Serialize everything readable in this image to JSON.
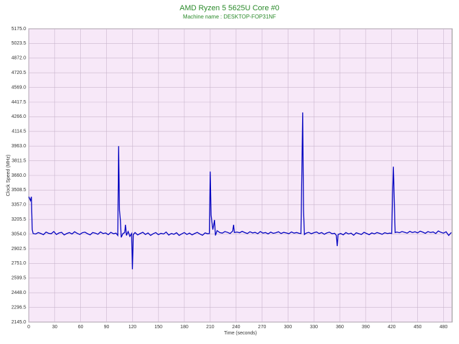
{
  "chart_data": {
    "type": "line",
    "title": "AMD Ryzen 5 5625U Core #0",
    "subtitle": "Machine name : DESKTOP-FOP31NF",
    "x_label": "Time (seconds)",
    "y_label": "Clock Speed (MHz)",
    "color": "#0000c0",
    "grid": true,
    "xlim": [
      0,
      490
    ],
    "xticks": [
      0,
      30,
      60,
      90,
      120,
      150,
      180,
      210,
      240,
      270,
      300,
      330,
      360,
      390,
      420,
      450,
      480
    ],
    "ylim": [
      2145,
      5175
    ],
    "yticks": [
      {
        "value": 2145,
        "label": "2145.0"
      },
      {
        "value": 2296.5,
        "label": "2296.5"
      },
      {
        "value": 2448,
        "label": "2448.0"
      },
      {
        "value": 2599.5,
        "label": "2599.5"
      },
      {
        "value": 2751,
        "label": "2751.0"
      },
      {
        "value": 2902.5,
        "label": "2902.5"
      },
      {
        "value": 3054,
        "label": "3054.0"
      },
      {
        "value": 3205.5,
        "label": "3205.5"
      },
      {
        "value": 3357,
        "label": "3357.0"
      },
      {
        "value": 3508.5,
        "label": "3508.5"
      },
      {
        "value": 3660,
        "label": "3660.0"
      },
      {
        "value": 3811.5,
        "label": "3811.5"
      },
      {
        "value": 3963,
        "label": "3963.0"
      },
      {
        "value": 4114.5,
        "label": "4114.5"
      },
      {
        "value": 4266,
        "label": "4266.0"
      },
      {
        "value": 4417.5,
        "label": "4417.5"
      },
      {
        "value": 4569,
        "label": "4569.0"
      },
      {
        "value": 4720.5,
        "label": "4720.5"
      },
      {
        "value": 4872,
        "label": "4872.0"
      },
      {
        "value": 5023.5,
        "label": "5023.5"
      },
      {
        "value": 5175,
        "label": "5175.0"
      }
    ],
    "x": [
      0,
      1,
      2,
      3,
      4,
      5,
      8,
      11,
      14,
      17,
      20,
      23,
      26,
      29,
      32,
      35,
      38,
      41,
      44,
      47,
      50,
      53,
      56,
      59,
      62,
      65,
      68,
      71,
      74,
      77,
      80,
      83,
      86,
      89,
      92,
      95,
      98,
      101,
      103,
      104,
      105,
      106,
      107,
      109,
      111,
      112,
      113,
      115,
      117,
      119,
      120,
      121,
      123,
      126,
      129,
      132,
      135,
      138,
      141,
      144,
      147,
      150,
      153,
      156,
      159,
      162,
      165,
      168,
      171,
      174,
      177,
      180,
      183,
      186,
      189,
      192,
      195,
      198,
      201,
      204,
      207,
      209,
      210,
      211,
      213,
      215,
      216,
      218,
      221,
      224,
      227,
      230,
      233,
      236,
      237,
      238,
      241,
      244,
      247,
      250,
      253,
      256,
      259,
      262,
      265,
      268,
      271,
      274,
      277,
      280,
      283,
      286,
      289,
      292,
      295,
      298,
      301,
      304,
      307,
      310,
      313,
      315,
      316,
      317,
      318,
      319,
      321,
      324,
      327,
      330,
      333,
      336,
      339,
      342,
      345,
      348,
      351,
      354,
      356,
      357,
      358,
      361,
      364,
      367,
      370,
      373,
      376,
      379,
      382,
      385,
      388,
      391,
      394,
      397,
      400,
      403,
      406,
      409,
      412,
      415,
      418,
      420,
      421,
      422,
      423,
      424,
      426,
      429,
      432,
      435,
      438,
      441,
      444,
      447,
      450,
      453,
      456,
      459,
      462,
      465,
      468,
      471,
      474,
      477,
      480,
      483,
      486,
      489
    ],
    "values": [
      3440,
      3420,
      3400,
      3440,
      3100,
      3060,
      3055,
      3070,
      3060,
      3048,
      3075,
      3062,
      3058,
      3080,
      3050,
      3066,
      3072,
      3045,
      3060,
      3070,
      3055,
      3078,
      3062,
      3050,
      3068,
      3074,
      3058,
      3046,
      3070,
      3064,
      3052,
      3076,
      3060,
      3066,
      3048,
      3072,
      3058,
      3064,
      3040,
      3963,
      3300,
      3200,
      3020,
      3060,
      3070,
      3150,
      3040,
      3080,
      3030,
      3060,
      2690,
      3050,
      3070,
      3045,
      3060,
      3072,
      3050,
      3066,
      3040,
      3058,
      3070,
      3048,
      3062,
      3055,
      3075,
      3044,
      3060,
      3052,
      3068,
      3040,
      3056,
      3070,
      3050,
      3064,
      3046,
      3060,
      3072,
      3055,
      3042,
      3066,
      3058,
      3060,
      3700,
      3250,
      3100,
      3200,
      3040,
      3090,
      3070,
      3064,
      3080,
      3072,
      3060,
      3085,
      3150,
      3070,
      3075,
      3068,
      3082,
      3070,
      3060,
      3078,
      3066,
      3072,
      3058,
      3080,
      3064,
      3070,
      3056,
      3074,
      3062,
      3068,
      3078,
      3060,
      3072,
      3066,
      3058,
      3076,
      3064,
      3070,
      3062,
      3060,
      3650,
      4310,
      3300,
      3050,
      3064,
      3072,
      3058,
      3068,
      3076,
      3060,
      3070,
      3052,
      3066,
      3074,
      3058,
      3062,
      3040,
      2930,
      3050,
      3060,
      3046,
      3070,
      3055,
      3064,
      3042,
      3068,
      3058,
      3050,
      3072,
      3060,
      3048,
      3066,
      3056,
      3070,
      3062,
      3052,
      3068,
      3060,
      3064,
      3060,
      3450,
      3750,
      3400,
      3070,
      3075,
      3068,
      3080,
      3072,
      3064,
      3082,
      3070,
      3078,
      3066,
      3084,
      3074,
      3062,
      3080,
      3070,
      3076,
      3060,
      3086,
      3072,
      3064,
      3078,
      3040,
      3070
    ]
  }
}
